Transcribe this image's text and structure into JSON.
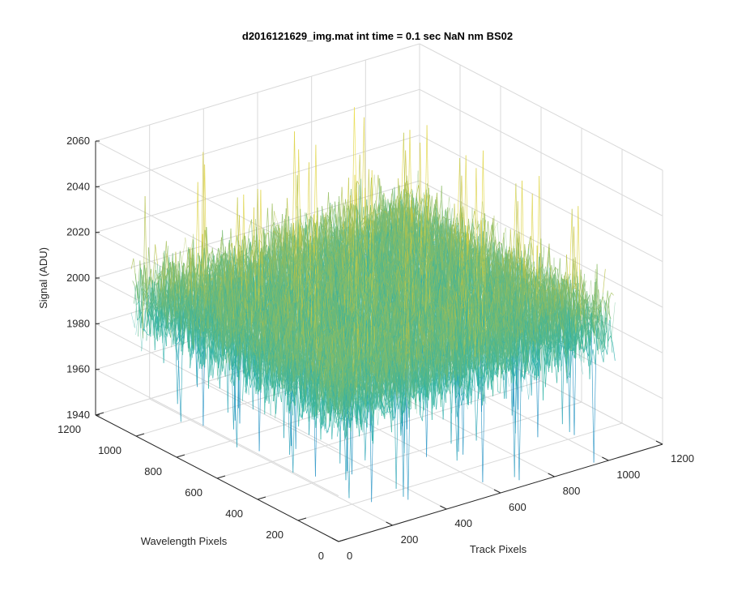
{
  "chart_data": {
    "type": "surface",
    "title": "d2016121629_img.mat int time = 0.1 sec  NaN nm BS02",
    "xlabel": "Track Pixels",
    "ylabel": "Wavelength Pixels",
    "zlabel": "Signal (ADU)",
    "xlim": [
      0,
      1200
    ],
    "ylim": [
      0,
      1200
    ],
    "zlim": [
      1940,
      2060
    ],
    "x_ticks": [
      "0",
      "200",
      "400",
      "600",
      "800",
      "1000",
      "1200"
    ],
    "y_ticks": [
      "0",
      "200",
      "400",
      "600",
      "800",
      "1000",
      "1200"
    ],
    "z_ticks": [
      "1940",
      "1960",
      "1980",
      "2000",
      "2020",
      "2040",
      "2060"
    ],
    "data_extent": {
      "x": [
        0,
        1024
      ],
      "y": [
        0,
        1024
      ]
    },
    "signal_stats": {
      "mean": 2000,
      "typical_min": 1955,
      "typical_max": 2035,
      "peak_max": 2058,
      "dip_min": 1936
    },
    "colormap": "parula",
    "colors": {
      "low": "#1f7fd3",
      "mid": "#2ab3a7",
      "high": "#c9c23a",
      "peak": "#f0e13c",
      "grid": "#d9d9d9",
      "axis": "#262626"
    },
    "grid": true
  }
}
